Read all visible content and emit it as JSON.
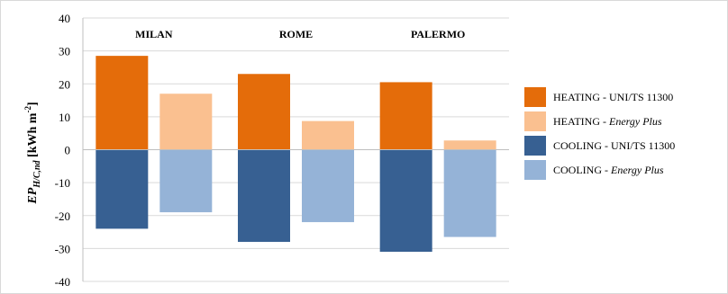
{
  "chart_data": {
    "type": "bar",
    "categories": [
      "MILAN",
      "ROME",
      "PALERMO"
    ],
    "ylabel": {
      "main": "EP",
      "sub": "H/C,nd",
      "unit_pre": " [kWh m",
      "unit_sup": "-2",
      "unit_post": "]"
    },
    "ylim": [
      -40,
      40
    ],
    "yticks": [
      40,
      30,
      20,
      10,
      0,
      -10,
      -20,
      -30,
      -40
    ],
    "grid": true,
    "legend_position": "right",
    "series": [
      {
        "name": "HEATING - UNI/TS 11300",
        "name_main": "HEATING - UNI/TS 11300",
        "name_em": "",
        "color": "#E46C0A",
        "slot": 0,
        "values": [
          28.5,
          23,
          20.5
        ]
      },
      {
        "name": "HEATING - Energy Plus",
        "name_main": "HEATING - ",
        "name_em": "Energy Plus",
        "color": "#FAC090",
        "slot": 1,
        "values": [
          17,
          8.7,
          2.8
        ]
      },
      {
        "name": "COOLING - UNI/TS 11300",
        "name_main": "COOLING - UNI/TS 11300",
        "name_em": "",
        "color": "#376092",
        "slot": 0,
        "values": [
          -24,
          -28,
          -31
        ]
      },
      {
        "name": "COOLING - Energy Plus",
        "name_main": "COOLING - ",
        "name_em": "Energy Plus",
        "color": "#95B3D7",
        "slot": 1,
        "values": [
          -19,
          -22,
          -26.5
        ]
      }
    ]
  }
}
